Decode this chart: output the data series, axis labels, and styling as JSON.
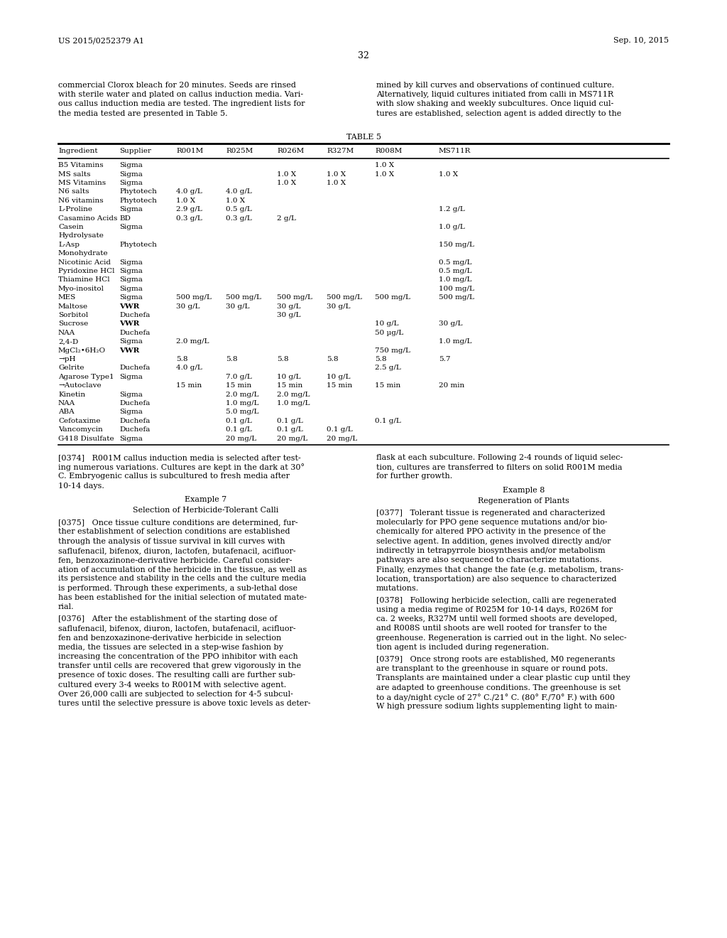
{
  "header_left": "US 2015/0252379 A1",
  "header_right": "Sep. 10, 2015",
  "page_number": "32",
  "left_col_text": [
    "commercial Clorox bleach for 20 minutes. Seeds are rinsed",
    "with sterile water and plated on callus induction media. Vari-",
    "ous callus induction media are tested. The ingredient lists for",
    "the media tested are presented in Table 5."
  ],
  "right_col_text": [
    "mined by kill curves and observations of continued culture.",
    "Alternatively, liquid cultures initiated from calli in MS711R",
    "with slow shaking and weekly subcultures. Once liquid cul-",
    "tures are established, selection agent is added directly to the"
  ],
  "table_title": "TABLE 5",
  "table_headers": [
    "Ingredient",
    "Supplier",
    "R001M",
    "R025M",
    "R026M",
    "R327M",
    "R008M",
    "MS711R"
  ],
  "table_rows": [
    [
      "B5 Vitamins",
      "Sigma",
      "",
      "",
      "",
      "",
      "1.0 X",
      ""
    ],
    [
      "MS salts",
      "Sigma",
      "",
      "",
      "1.0 X",
      "1.0 X",
      "1.0 X",
      "1.0 X"
    ],
    [
      "MS Vitamins",
      "Sigma",
      "",
      "",
      "1.0 X",
      "1.0 X",
      "",
      ""
    ],
    [
      "N6 salts",
      "Phytotech",
      "4.0 g/L",
      "4.0 g/L",
      "",
      "",
      "",
      ""
    ],
    [
      "N6 vitamins",
      "Phytotech",
      "1.0 X",
      "1.0 X",
      "",
      "",
      "",
      ""
    ],
    [
      "L-Proline",
      "Sigma",
      "2.9 g/L",
      "0.5 g/L",
      "",
      "",
      "",
      "1.2 g/L"
    ],
    [
      "Casamino Acids",
      "BD",
      "0.3 g/L",
      "0.3 g/L",
      "2 g/L",
      "",
      "",
      ""
    ],
    [
      "Casein\nHydrolysate",
      "Sigma",
      "",
      "",
      "",
      "",
      "",
      "1.0 g/L"
    ],
    [
      "L-Asp\nMonohydrate",
      "Phytotech",
      "",
      "",
      "",
      "",
      "",
      "150 mg/L"
    ],
    [
      "Nicotinic Acid",
      "Sigma",
      "",
      "",
      "",
      "",
      "",
      "0.5 mg/L"
    ],
    [
      "Pyridoxine HCl",
      "Sigma",
      "",
      "",
      "",
      "",
      "",
      "0.5 mg/L"
    ],
    [
      "Thiamine HCl",
      "Sigma",
      "",
      "",
      "",
      "",
      "",
      "1.0 mg/L"
    ],
    [
      "Myo-inositol",
      "Sigma",
      "",
      "",
      "",
      "",
      "",
      "100 mg/L"
    ],
    [
      "MES",
      "Sigma",
      "500 mg/L",
      "500 mg/L",
      "500 mg/L",
      "500 mg/L",
      "500 mg/L",
      "500 mg/L"
    ],
    [
      "Maltose",
      "VWR",
      "30 g/L",
      "30 g/L",
      "30 g/L",
      "30 g/L",
      "",
      ""
    ],
    [
      "Sorbitol",
      "Duchefa",
      "",
      "",
      "30 g/L",
      "",
      "",
      ""
    ],
    [
      "Sucrose",
      "VWR",
      "",
      "",
      "",
      "",
      "10 g/L",
      "30 g/L"
    ],
    [
      "NAA",
      "Duchefa",
      "",
      "",
      "",
      "",
      "50 µg/L",
      ""
    ],
    [
      "2,4-D",
      "Sigma",
      "2.0 mg/L",
      "",
      "",
      "",
      "",
      "1.0 mg/L"
    ],
    [
      "MgCl₂•6H₂O",
      "VWR",
      "",
      "",
      "",
      "",
      "750 mg/L",
      ""
    ],
    [
      "→pH",
      "",
      "5.8",
      "5.8",
      "5.8",
      "5.8",
      "5.8",
      "5.7"
    ],
    [
      "Gelrite",
      "Duchefa",
      "4.0 g/L",
      "",
      "",
      "",
      "2.5 g/L",
      ""
    ],
    [
      "Agarose Type1",
      "Sigma",
      "",
      "7.0 g/L",
      "10 g/L",
      "10 g/L",
      "",
      ""
    ],
    [
      "→Autoclave",
      "",
      "15 min",
      "15 min",
      "15 min",
      "15 min",
      "15 min",
      "20 min"
    ],
    [
      "Kinetin",
      "Sigma",
      "",
      "2.0 mg/L",
      "2.0 mg/L",
      "",
      "",
      ""
    ],
    [
      "NAA",
      "Duchefa",
      "",
      "1.0 mg/L",
      "1.0 mg/L",
      "",
      "",
      ""
    ],
    [
      "ABA",
      "Sigma",
      "",
      "5.0 mg/L",
      "",
      "",
      "",
      ""
    ],
    [
      "Cefotaxime",
      "Duchefa",
      "",
      "0.1 g/L",
      "0.1 g/L",
      "",
      "0.1 g/L",
      ""
    ],
    [
      "Vancomycin",
      "Duchefa",
      "",
      "0.1 g/L",
      "0.1 g/L",
      "0.1 g/L",
      "",
      ""
    ],
    [
      "G418 Disulfate",
      "Sigma",
      "",
      "20 mg/L",
      "20 mg/L",
      "20 mg/L",
      "",
      ""
    ]
  ],
  "bold_suppliers": [
    "VWR"
  ],
  "para_0374_lines": [
    "[0374]   R001M callus induction media is selected after test-",
    "ing numerous variations. Cultures are kept in the dark at 30°",
    "C. Embryogenic callus is subcultured to fresh media after",
    "10-14 days."
  ],
  "right_para_top_lines": [
    "flask at each subculture. Following 2-4 rounds of liquid selec-",
    "tion, cultures are transferred to filters on solid R001M media",
    "for further growth."
  ],
  "example7_title": "Example 7",
  "example7_subtitle": "Selection of Herbicide-Tolerant Calli",
  "para_0375_lines": [
    "[0375]   Once tissue culture conditions are determined, fur-",
    "ther establishment of selection conditions are established",
    "through the analysis of tissue survival in kill curves with",
    "saflufenacil, bifenox, diuron, lactofen, butafenacil, acifluor-",
    "fen, benzoxazinone-derivative herbicide. Careful consider-",
    "ation of accumulation of the herbicide in the tissue, as well as",
    "its persistence and stability in the cells and the culture media",
    "is performed. Through these experiments, a sub-lethal dose",
    "has been established for the initial selection of mutated mate-",
    "rial."
  ],
  "para_0376_lines": [
    "[0376]   After the establishment of the starting dose of",
    "saflufenacil, bifenox, diuron, lactofen, butafenacil, acifluor-",
    "fen and benzoxazinone-derivative herbicide in selection",
    "media, the tissues are selected in a step-wise fashion by",
    "increasing the concentration of the PPO inhibitor with each",
    "transfer until cells are recovered that grew vigorously in the",
    "presence of toxic doses. The resulting calli are further sub-",
    "cultured every 3-4 weeks to R001M with selective agent.",
    "Over 26,000 calli are subjected to selection for 4-5 subcul-",
    "tures until the selective pressure is above toxic levels as deter-"
  ],
  "example8_title": "Example 8",
  "example8_subtitle": "Regeneration of Plants",
  "para_0377_lines": [
    "[0377]   Tolerant tissue is regenerated and characterized",
    "molecularly for PPO gene sequence mutations and/or bio-",
    "chemically for altered PPO activity in the presence of the",
    "selective agent. In addition, genes involved directly and/or",
    "indirectly in tetrapyrrole biosynthesis and/or metabolism",
    "pathways are also sequenced to characterize mutations.",
    "Finally, enzymes that change the fate (e.g. metabolism, trans-",
    "location, transportation) are also sequence to characterized",
    "mutations."
  ],
  "para_0378_lines": [
    "[0378]   Following herbicide selection, calli are regenerated",
    "using a media regime of R025M for 10-14 days, R026M for",
    "ca. 2 weeks, R327M until well formed shoots are developed,",
    "and R008S until shoots are well rooted for transfer to the",
    "greenhouse. Regeneration is carried out in the light. No selec-",
    "tion agent is included during regeneration."
  ],
  "para_0379_lines": [
    "[0379]   Once strong roots are established, M0 regenerants",
    "are transplant to the greenhouse in square or round pots.",
    "Transplants are maintained under a clear plastic cup until they",
    "are adapted to greenhouse conditions. The greenhouse is set",
    "to a day/night cycle of 27° C./21° C. (80° F./70° F.) with 600",
    "W high pressure sodium lights supplementing light to main-"
  ],
  "bg_color": "#ffffff",
  "text_color": "#000000",
  "font_size": 8.0,
  "table_font_size": 7.5,
  "lh": 13.2
}
